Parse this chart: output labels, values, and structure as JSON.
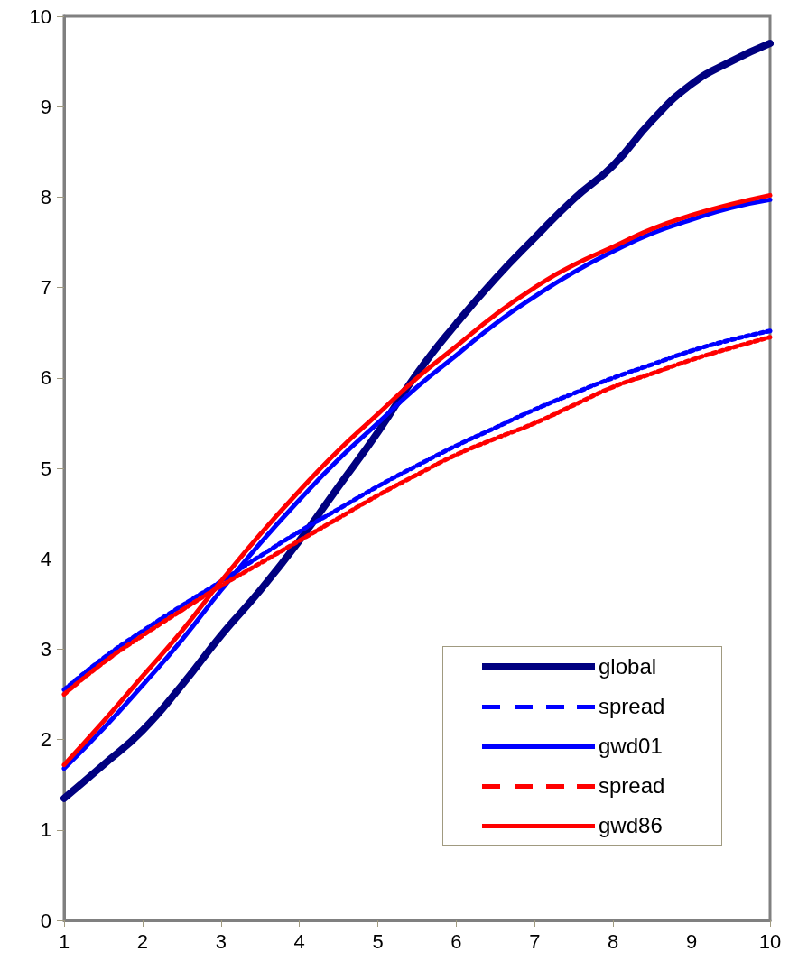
{
  "chart_data": {
    "type": "line",
    "x": [
      1,
      1.5,
      2,
      2.5,
      3,
      3.5,
      4,
      4.5,
      5,
      5.5,
      6,
      6.5,
      7,
      7.5,
      8,
      8.5,
      9,
      9.5,
      10
    ],
    "xlim": [
      1,
      10
    ],
    "xticks": [
      1,
      2,
      3,
      4,
      5,
      6,
      7,
      8,
      9,
      10
    ],
    "ylim": [
      0,
      10
    ],
    "yticks": [
      0,
      1,
      2,
      3,
      4,
      5,
      6,
      7,
      8,
      9,
      10
    ],
    "grid": false,
    "legend": "bottom right",
    "marker": "none",
    "series": [
      {
        "name": "global",
        "color": "#000080",
        "line_style": "solid",
        "values": [
          1.35,
          1.72,
          2.1,
          2.6,
          3.15,
          3.65,
          4.2,
          4.8,
          5.4,
          6.05,
          6.6,
          7.1,
          7.55,
          7.98,
          8.35,
          8.85,
          9.25,
          9.5,
          9.7
        ]
      },
      {
        "name": "spread",
        "color": "#0000ff",
        "line_style": "dashed",
        "values": [
          2.55,
          2.9,
          3.2,
          3.48,
          3.75,
          4.03,
          4.3,
          4.55,
          4.8,
          5.03,
          5.25,
          5.45,
          5.65,
          5.83,
          6.0,
          6.15,
          6.3,
          6.42,
          6.52
        ]
      },
      {
        "name": "gwd01",
        "color": "#0000ff",
        "line_style": "solid",
        "values": [
          1.68,
          2.12,
          2.6,
          3.1,
          3.65,
          4.17,
          4.65,
          5.1,
          5.5,
          5.9,
          6.25,
          6.6,
          6.9,
          7.17,
          7.4,
          7.6,
          7.75,
          7.88,
          7.97
        ]
      },
      {
        "name": "spread",
        "color": "#ff0000",
        "line_style": "dashed",
        "values": [
          2.5,
          2.85,
          3.15,
          3.43,
          3.7,
          3.95,
          4.2,
          4.45,
          4.7,
          4.93,
          5.15,
          5.33,
          5.5,
          5.7,
          5.9,
          6.05,
          6.2,
          6.33,
          6.45
        ]
      },
      {
        "name": "gwd86",
        "color": "#ff0000",
        "line_style": "solid",
        "values": [
          1.72,
          2.2,
          2.7,
          3.2,
          3.75,
          4.27,
          4.75,
          5.2,
          5.6,
          6.0,
          6.35,
          6.7,
          7.0,
          7.25,
          7.45,
          7.65,
          7.8,
          7.92,
          8.02
        ]
      }
    ]
  }
}
